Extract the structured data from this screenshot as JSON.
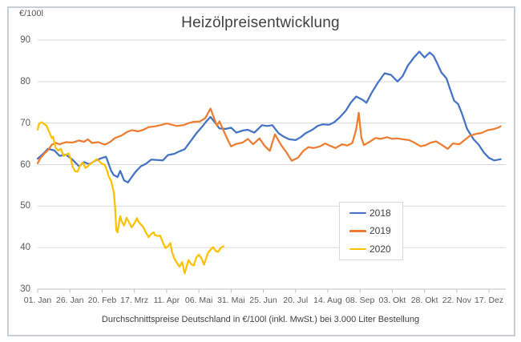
{
  "title": "Heizölpreisentwicklung",
  "y_unit_label": "€/100l",
  "caption": "Durchschnittspreise Deutschland in €/100l (inkl. MwSt.) bei 3.000 Liter Bestellung",
  "colors": {
    "grid": "#d9d9d9",
    "axis": "#bfbfbf",
    "tick_text": "#595959"
  },
  "chart_data": {
    "type": "line",
    "title": "Heizölpreisentwicklung",
    "ylabel": "€/100l",
    "ylim": [
      30,
      90
    ],
    "y_ticks": [
      30,
      40,
      50,
      60,
      70,
      80,
      90
    ],
    "xlim": [
      1,
      364
    ],
    "x_unit": "day-of-year",
    "x_tick_days": [
      1,
      26,
      51,
      76,
      101,
      126,
      151,
      176,
      201,
      226,
      251,
      276,
      301,
      326,
      351
    ],
    "x_tick_labels": [
      "01. Jan",
      "26. Jan",
      "20. Feb",
      "17. Mrz",
      "11. Apr",
      "06. Mai",
      "31. Mai",
      "25. Jun",
      "20. Jul",
      "14. Aug",
      "08. Sep",
      "03. Okt",
      "28. Okt",
      "22. Nov",
      "17. Dez"
    ],
    "grid": "horizontal",
    "legend_position": "middle-right",
    "series": [
      {
        "name": "2018",
        "color": "#4472C4",
        "points": [
          [
            1,
            61.4
          ],
          [
            5,
            62.5
          ],
          [
            9,
            63.8
          ],
          [
            14,
            63.4
          ],
          [
            18,
            62.1
          ],
          [
            23,
            62.4
          ],
          [
            28,
            61.2
          ],
          [
            33,
            59.6
          ],
          [
            37,
            60.6
          ],
          [
            41,
            60.1
          ],
          [
            46,
            61
          ],
          [
            51,
            61.6
          ],
          [
            54,
            61.9
          ],
          [
            58,
            58.5
          ],
          [
            60,
            57.5
          ],
          [
            63,
            57
          ],
          [
            65,
            58.5
          ],
          [
            68,
            56.2
          ],
          [
            71,
            55.7
          ],
          [
            74,
            57
          ],
          [
            77,
            58.3
          ],
          [
            81,
            59.6
          ],
          [
            85,
            60.2
          ],
          [
            89,
            61.2
          ],
          [
            94,
            61.1
          ],
          [
            98,
            61
          ],
          [
            102,
            62.3
          ],
          [
            107,
            62.6
          ],
          [
            111,
            63.2
          ],
          [
            115,
            63.7
          ],
          [
            120,
            65.8
          ],
          [
            124,
            67.5
          ],
          [
            129,
            69.3
          ],
          [
            132,
            70.5
          ],
          [
            135,
            71.5
          ],
          [
            138,
            70.3
          ],
          [
            142,
            68.7
          ],
          [
            147,
            68.6
          ],
          [
            151,
            68.9
          ],
          [
            155,
            67.7
          ],
          [
            160,
            68.2
          ],
          [
            164,
            68.4
          ],
          [
            169,
            67.7
          ],
          [
            175,
            69.5
          ],
          [
            179,
            69.3
          ],
          [
            183,
            69.5
          ],
          [
            188,
            67.5
          ],
          [
            192,
            66.7
          ],
          [
            196,
            66.1
          ],
          [
            201,
            65.9
          ],
          [
            205,
            66.6
          ],
          [
            209,
            67.6
          ],
          [
            214,
            68.4
          ],
          [
            218,
            69.3
          ],
          [
            222,
            69.7
          ],
          [
            227,
            69.6
          ],
          [
            231,
            70.2
          ],
          [
            235,
            71.3
          ],
          [
            240,
            73
          ],
          [
            244,
            75
          ],
          [
            248,
            76.4
          ],
          [
            253,
            75.6
          ],
          [
            256,
            74.9
          ],
          [
            260,
            77.3
          ],
          [
            265,
            79.8
          ],
          [
            270,
            82
          ],
          [
            275,
            81.6
          ],
          [
            280,
            80
          ],
          [
            284,
            81.3
          ],
          [
            288,
            83.8
          ],
          [
            293,
            85.9
          ],
          [
            297,
            87.2
          ],
          [
            301,
            85.8
          ],
          [
            305,
            87
          ],
          [
            308,
            86.2
          ],
          [
            311,
            84.3
          ],
          [
            314,
            82.2
          ],
          [
            318,
            80.8
          ],
          [
            321,
            78
          ],
          [
            324,
            75.4
          ],
          [
            327,
            74.6
          ],
          [
            330,
            72.3
          ],
          [
            334,
            68.6
          ],
          [
            339,
            66.1
          ],
          [
            343,
            64.8
          ],
          [
            347,
            62.9
          ],
          [
            351,
            61.6
          ],
          [
            355,
            61
          ],
          [
            360,
            61.3
          ]
        ]
      },
      {
        "name": "2019",
        "color": "#ED7D31",
        "points": [
          [
            1,
            60.3
          ],
          [
            3,
            61.5
          ],
          [
            6,
            62.6
          ],
          [
            9,
            63.5
          ],
          [
            12,
            64.8
          ],
          [
            15,
            65.2
          ],
          [
            18,
            64.9
          ],
          [
            23,
            65.4
          ],
          [
            28,
            65.3
          ],
          [
            33,
            65.8
          ],
          [
            37,
            65.5
          ],
          [
            40,
            66.1
          ],
          [
            43,
            65.2
          ],
          [
            48,
            65.4
          ],
          [
            53,
            64.8
          ],
          [
            57,
            65.4
          ],
          [
            61,
            66.4
          ],
          [
            66,
            67
          ],
          [
            70,
            67.8
          ],
          [
            74,
            68.3
          ],
          [
            79,
            68
          ],
          [
            83,
            68.4
          ],
          [
            87,
            69
          ],
          [
            92,
            69.2
          ],
          [
            96,
            69.5
          ],
          [
            101,
            69.9
          ],
          [
            105,
            69.6
          ],
          [
            109,
            69.3
          ],
          [
            114,
            69.5
          ],
          [
            118,
            70
          ],
          [
            122,
            70.3
          ],
          [
            127,
            70.4
          ],
          [
            131,
            71.2
          ],
          [
            135,
            73.5
          ],
          [
            138,
            71
          ],
          [
            140,
            69.4
          ],
          [
            142,
            70.4
          ],
          [
            145,
            68.3
          ],
          [
            148,
            66.2
          ],
          [
            151,
            64.4
          ],
          [
            155,
            65
          ],
          [
            160,
            65.3
          ],
          [
            164,
            66.2
          ],
          [
            168,
            64.9
          ],
          [
            173,
            66.3
          ],
          [
            177,
            64.5
          ],
          [
            181,
            63.3
          ],
          [
            185,
            67.3
          ],
          [
            190,
            64.6
          ],
          [
            194,
            62.9
          ],
          [
            198,
            60.9
          ],
          [
            203,
            61.7
          ],
          [
            207,
            63.3
          ],
          [
            211,
            64.2
          ],
          [
            215,
            64
          ],
          [
            220,
            64.4
          ],
          [
            224,
            65.1
          ],
          [
            228,
            64.5
          ],
          [
            232,
            64
          ],
          [
            237,
            64.9
          ],
          [
            241,
            64.6
          ],
          [
            245,
            65.2
          ],
          [
            248,
            68.5
          ],
          [
            250,
            72.5
          ],
          [
            252,
            66.5
          ],
          [
            254,
            64.7
          ],
          [
            258,
            65.4
          ],
          [
            263,
            66.4
          ],
          [
            267,
            66.2
          ],
          [
            272,
            66.6
          ],
          [
            276,
            66.2
          ],
          [
            280,
            66.3
          ],
          [
            284,
            66.1
          ],
          [
            289,
            65.9
          ],
          [
            293,
            65.3
          ],
          [
            298,
            64.4
          ],
          [
            302,
            64.7
          ],
          [
            306,
            65.3
          ],
          [
            310,
            65.6
          ],
          [
            314,
            64.8
          ],
          [
            319,
            63.8
          ],
          [
            323,
            65.1
          ],
          [
            328,
            64.9
          ],
          [
            332,
            65.9
          ],
          [
            336,
            66.9
          ],
          [
            341,
            67.4
          ],
          [
            345,
            67.6
          ],
          [
            350,
            68.3
          ],
          [
            354,
            68.5
          ],
          [
            358,
            68.9
          ],
          [
            360,
            69.2
          ]
        ]
      },
      {
        "name": "2020",
        "color": "#FFC000",
        "points": [
          [
            1,
            68.4
          ],
          [
            2,
            69.8
          ],
          [
            4,
            70.2
          ],
          [
            6,
            69.8
          ],
          [
            8,
            69.3
          ],
          [
            10,
            67.8
          ],
          [
            12,
            66.4
          ],
          [
            13,
            66.7
          ],
          [
            15,
            64
          ],
          [
            17,
            63.4
          ],
          [
            19,
            63.8
          ],
          [
            21,
            62.1
          ],
          [
            23,
            62.4
          ],
          [
            25,
            62.7
          ],
          [
            27,
            61
          ],
          [
            28,
            59.6
          ],
          [
            30,
            58.4
          ],
          [
            32,
            58.3
          ],
          [
            34,
            59.9
          ],
          [
            36,
            60.5
          ],
          [
            38,
            59.2
          ],
          [
            40,
            59.6
          ],
          [
            41,
            60
          ],
          [
            43,
            60.4
          ],
          [
            45,
            60.9
          ],
          [
            47,
            61.3
          ],
          [
            49,
            60.7
          ],
          [
            51,
            60.2
          ],
          [
            53,
            59.9
          ],
          [
            55,
            58.4
          ],
          [
            56,
            57.2
          ],
          [
            58,
            56
          ],
          [
            60,
            53.4
          ],
          [
            61,
            50
          ],
          [
            62,
            44.2
          ],
          [
            63,
            43.7
          ],
          [
            64,
            46
          ],
          [
            65,
            47.6
          ],
          [
            66,
            46.4
          ],
          [
            68,
            45.3
          ],
          [
            70,
            47.2
          ],
          [
            72,
            46
          ],
          [
            74,
            44.9
          ],
          [
            76,
            45.9
          ],
          [
            78,
            47.1
          ],
          [
            79,
            46.3
          ],
          [
            81,
            45.6
          ],
          [
            83,
            44.9
          ],
          [
            85,
            43.6
          ],
          [
            87,
            42.5
          ],
          [
            89,
            43.3
          ],
          [
            91,
            43.7
          ],
          [
            92,
            43
          ],
          [
            94,
            42.8
          ],
          [
            96,
            42.9
          ],
          [
            98,
            41.3
          ],
          [
            100,
            39.9
          ],
          [
            102,
            40.3
          ],
          [
            104,
            41.1
          ],
          [
            105,
            39.1
          ],
          [
            107,
            37.4
          ],
          [
            109,
            36.3
          ],
          [
            111,
            35.4
          ],
          [
            113,
            36.5
          ],
          [
            115,
            33.8
          ],
          [
            117,
            36
          ],
          [
            118,
            37
          ],
          [
            120,
            36
          ],
          [
            122,
            35.7
          ],
          [
            124,
            37.6
          ],
          [
            126,
            38.3
          ],
          [
            128,
            37.4
          ],
          [
            130,
            35.9
          ],
          [
            131,
            36.8
          ],
          [
            133,
            38.7
          ],
          [
            135,
            39.5
          ],
          [
            137,
            40.1
          ],
          [
            139,
            39.2
          ],
          [
            141,
            39
          ],
          [
            143,
            40
          ],
          [
            145,
            40.3
          ]
        ]
      }
    ]
  }
}
